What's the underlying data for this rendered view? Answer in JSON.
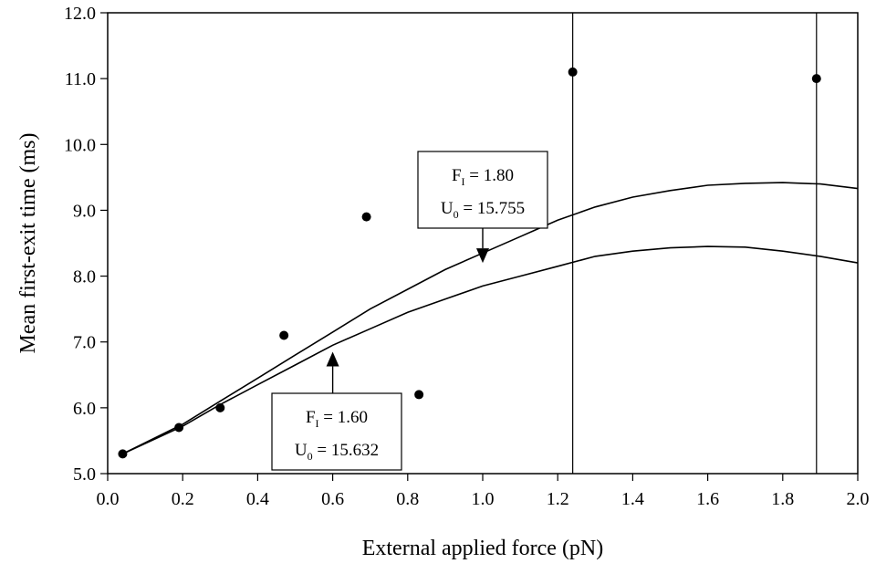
{
  "chart_data": {
    "type": "scatter",
    "title": "",
    "xlabel": "External applied force (pN)",
    "ylabel": "Mean first-exit time (ms)",
    "xlim": [
      0.0,
      2.0
    ],
    "ylim": [
      5.0,
      12.0
    ],
    "xticks": [
      "0.0",
      "0.2",
      "0.4",
      "0.6",
      "0.8",
      "1.0",
      "1.2",
      "1.4",
      "1.6",
      "1.8",
      "2.0"
    ],
    "yticks": [
      "5.0",
      "6.0",
      "7.0",
      "8.0",
      "9.0",
      "10.0",
      "11.0",
      "12.0"
    ],
    "grid": false,
    "legend": "none",
    "points": [
      {
        "x": 0.04,
        "y": 5.3
      },
      {
        "x": 0.19,
        "y": 5.7
      },
      {
        "x": 0.3,
        "y": 6.0
      },
      {
        "x": 0.47,
        "y": 7.1
      },
      {
        "x": 0.69,
        "y": 8.9
      },
      {
        "x": 0.83,
        "y": 6.2
      },
      {
        "x": 1.24,
        "y": 11.1
      },
      {
        "x": 1.89,
        "y": 11.0
      }
    ],
    "vertical_lines": [
      1.24,
      1.89
    ],
    "curves": [
      {
        "x": [
          0.04,
          0.2,
          0.3,
          0.4,
          0.5,
          0.6,
          0.7,
          0.8,
          0.9,
          1.0,
          1.1,
          1.2,
          1.3,
          1.4,
          1.5,
          1.6,
          1.7,
          1.8,
          1.9,
          2.0
        ],
        "y": [
          5.3,
          5.75,
          6.1,
          6.45,
          6.8,
          7.15,
          7.5,
          7.8,
          8.1,
          8.35,
          8.6,
          8.85,
          9.05,
          9.2,
          9.3,
          9.38,
          9.41,
          9.42,
          9.4,
          9.33
        ]
      },
      {
        "x": [
          0.04,
          0.2,
          0.3,
          0.4,
          0.5,
          0.6,
          0.7,
          0.8,
          0.9,
          1.0,
          1.1,
          1.2,
          1.3,
          1.4,
          1.5,
          1.6,
          1.7,
          1.8,
          1.9,
          2.0
        ],
        "y": [
          5.3,
          5.72,
          6.05,
          6.35,
          6.65,
          6.95,
          7.2,
          7.45,
          7.65,
          7.85,
          8.0,
          8.15,
          8.3,
          8.38,
          8.43,
          8.45,
          8.44,
          8.38,
          8.3,
          8.2
        ]
      }
    ],
    "annotations": [
      {
        "f_label": "F",
        "f_sub": "I",
        "f_value": " = 1.80",
        "u_label": "U",
        "u_sub": "0",
        "u_value": " = 15.755",
        "arrow_x": 1.0,
        "arrow_y": 8.2,
        "arrow_dir": "down"
      },
      {
        "f_label": "F",
        "f_sub": "I",
        "f_value": " = 1.60",
        "u_label": "U",
        "u_sub": "0",
        "u_value": " = 15.632",
        "arrow_x": 0.6,
        "arrow_y": 6.85,
        "arrow_dir": "up"
      }
    ]
  }
}
